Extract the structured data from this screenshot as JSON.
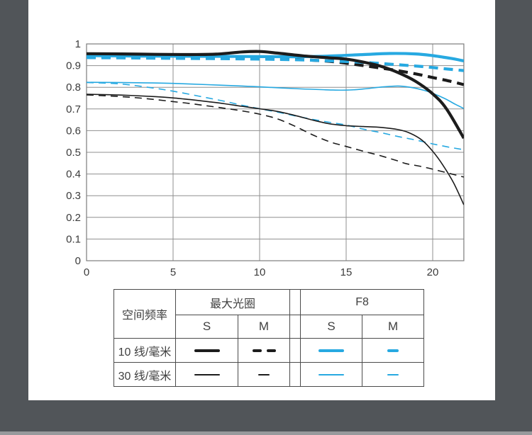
{
  "page": {
    "background": "#515559",
    "panel_bg": "#ffffff",
    "bottom_strip_color": "#97999c"
  },
  "chart_data": {
    "type": "line",
    "title": "",
    "xlabel": "",
    "ylabel": "",
    "xlim": [
      0,
      21.8
    ],
    "ylim": [
      0,
      1
    ],
    "x_ticks": [
      0,
      5,
      10,
      15,
      20
    ],
    "x_tick_labels": [
      "0",
      "5",
      "10",
      "15",
      "20"
    ],
    "y_ticks": [
      0,
      0.1,
      0.2,
      0.3,
      0.4,
      0.5,
      0.6,
      0.7,
      0.8,
      0.9,
      1
    ],
    "y_tick_labels": [
      "0",
      "0.1",
      "0.2",
      "0.3",
      "0.4",
      "0.5",
      "0.6",
      "0.7",
      "0.8",
      "0.9",
      "1"
    ],
    "grid": true,
    "legend_position": "bottom-table",
    "axis_color": "#7d7d7d",
    "grid_color": "#8f8f8f",
    "tick_label_color": "#3b3b3b",
    "colors": {
      "max_aperture_black": "#1c1c1c",
      "f8_blue": "#27a9e1"
    },
    "series": [
      {
        "name": "F8 30线/毫米 M",
        "aperture": "F8",
        "frequency": "30 线/毫米",
        "direction": "M",
        "color": "#27a9e1",
        "width": "thin",
        "dash": true,
        "points": [
          [
            0,
            0.822
          ],
          [
            1.5,
            0.818
          ],
          [
            2.5,
            0.811
          ],
          [
            4,
            0.795
          ],
          [
            5,
            0.782
          ],
          [
            6,
            0.767
          ],
          [
            7,
            0.751
          ],
          [
            8,
            0.735
          ],
          [
            9,
            0.717
          ],
          [
            10,
            0.701
          ],
          [
            11,
            0.686
          ],
          [
            12,
            0.669
          ],
          [
            13,
            0.653
          ],
          [
            14,
            0.639
          ],
          [
            15,
            0.626
          ],
          [
            16,
            0.607
          ],
          [
            17,
            0.591
          ],
          [
            18,
            0.573
          ],
          [
            19,
            0.557
          ],
          [
            20,
            0.539
          ],
          [
            21,
            0.523
          ],
          [
            21.8,
            0.512
          ]
        ]
      },
      {
        "name": "F8 30线/毫米 S",
        "aperture": "F8",
        "frequency": "30 线/毫米",
        "direction": "S",
        "color": "#27a9e1",
        "width": "thin",
        "dash": false,
        "points": [
          [
            0,
            0.823
          ],
          [
            3,
            0.821
          ],
          [
            5,
            0.818
          ],
          [
            7,
            0.812
          ],
          [
            9,
            0.806
          ],
          [
            10,
            0.802
          ],
          [
            12,
            0.794
          ],
          [
            14,
            0.788
          ],
          [
            15,
            0.787
          ],
          [
            16,
            0.792
          ],
          [
            17,
            0.801
          ],
          [
            18,
            0.806
          ],
          [
            18.7,
            0.8
          ],
          [
            19.5,
            0.786
          ],
          [
            20,
            0.772
          ],
          [
            20.7,
            0.748
          ],
          [
            21.3,
            0.722
          ],
          [
            21.8,
            0.702
          ]
        ]
      },
      {
        "name": "最大光圈 30线/毫米 M",
        "aperture": "最大光圈",
        "frequency": "30 线/毫米",
        "direction": "M",
        "color": "#1c1c1c",
        "width": "thin",
        "dash": true,
        "points": [
          [
            0,
            0.765
          ],
          [
            2,
            0.757
          ],
          [
            3,
            0.751
          ],
          [
            4,
            0.743
          ],
          [
            5,
            0.734
          ],
          [
            6,
            0.725
          ],
          [
            7,
            0.714
          ],
          [
            8,
            0.703
          ],
          [
            9,
            0.691
          ],
          [
            10,
            0.676
          ],
          [
            11,
            0.655
          ],
          [
            12,
            0.622
          ],
          [
            13,
            0.583
          ],
          [
            14,
            0.55
          ],
          [
            15,
            0.527
          ],
          [
            16,
            0.505
          ],
          [
            17,
            0.484
          ],
          [
            18,
            0.46
          ],
          [
            18.5,
            0.447
          ],
          [
            19.5,
            0.432
          ],
          [
            20.5,
            0.412
          ],
          [
            21.8,
            0.386
          ]
        ]
      },
      {
        "name": "最大光圈 30线/毫米 S",
        "aperture": "最大光圈",
        "frequency": "30 线/毫米",
        "direction": "S",
        "color": "#1c1c1c",
        "width": "thin",
        "dash": false,
        "points": [
          [
            0,
            0.768
          ],
          [
            2,
            0.764
          ],
          [
            4,
            0.757
          ],
          [
            5,
            0.751
          ],
          [
            6,
            0.743
          ],
          [
            7,
            0.734
          ],
          [
            8,
            0.724
          ],
          [
            9,
            0.712
          ],
          [
            10,
            0.701
          ],
          [
            11,
            0.689
          ],
          [
            12,
            0.671
          ],
          [
            13,
            0.65
          ],
          [
            14,
            0.632
          ],
          [
            15,
            0.623
          ],
          [
            16,
            0.619
          ],
          [
            17,
            0.615
          ],
          [
            18,
            0.605
          ],
          [
            18.7,
            0.588
          ],
          [
            19.4,
            0.555
          ],
          [
            20,
            0.505
          ],
          [
            20.6,
            0.44
          ],
          [
            21.2,
            0.36
          ],
          [
            21.8,
            0.258
          ]
        ]
      },
      {
        "name": "最大光圈 10线/毫米 M",
        "aperture": "最大光圈",
        "frequency": "10 线/毫米",
        "direction": "M",
        "color": "#1c1c1c",
        "width": "thick",
        "dash": true,
        "points": [
          [
            0,
            0.941
          ],
          [
            3,
            0.939
          ],
          [
            6,
            0.937
          ],
          [
            9,
            0.935
          ],
          [
            11,
            0.931
          ],
          [
            13,
            0.925
          ],
          [
            14.5,
            0.916
          ],
          [
            16,
            0.9
          ],
          [
            17.5,
            0.883
          ],
          [
            19,
            0.862
          ],
          [
            20,
            0.845
          ],
          [
            21,
            0.828
          ],
          [
            21.8,
            0.812
          ]
        ]
      },
      {
        "name": "F8 10线/毫米 M",
        "aperture": "F8",
        "frequency": "10 线/毫米",
        "direction": "M",
        "color": "#27a9e1",
        "width": "thick",
        "dash": true,
        "points": [
          [
            0,
            0.937
          ],
          [
            3,
            0.935
          ],
          [
            6,
            0.933
          ],
          [
            9,
            0.931
          ],
          [
            12,
            0.927
          ],
          [
            14,
            0.922
          ],
          [
            16,
            0.915
          ],
          [
            18,
            0.904
          ],
          [
            19.5,
            0.895
          ],
          [
            20.5,
            0.887
          ],
          [
            21.8,
            0.877
          ]
        ]
      },
      {
        "name": "F8 10线/毫米 S",
        "aperture": "F8",
        "frequency": "10 线/毫米",
        "direction": "S",
        "color": "#27a9e1",
        "width": "thick",
        "dash": false,
        "points": [
          [
            0,
            0.946
          ],
          [
            3,
            0.944
          ],
          [
            6,
            0.943
          ],
          [
            9,
            0.942
          ],
          [
            12,
            0.941
          ],
          [
            14,
            0.944
          ],
          [
            16,
            0.951
          ],
          [
            17.5,
            0.956
          ],
          [
            19,
            0.954
          ],
          [
            20,
            0.946
          ],
          [
            21,
            0.934
          ],
          [
            21.8,
            0.922
          ]
        ]
      },
      {
        "name": "最大光圈 10线/毫米 S",
        "aperture": "最大光圈",
        "frequency": "10 线/毫米",
        "direction": "S",
        "color": "#1c1c1c",
        "width": "thick",
        "dash": false,
        "points": [
          [
            0,
            0.955
          ],
          [
            2,
            0.954
          ],
          [
            4,
            0.952
          ],
          [
            6,
            0.951
          ],
          [
            7.5,
            0.953
          ],
          [
            9,
            0.963
          ],
          [
            10,
            0.965
          ],
          [
            11,
            0.958
          ],
          [
            12.5,
            0.945
          ],
          [
            14,
            0.936
          ],
          [
            15,
            0.93
          ],
          [
            16,
            0.916
          ],
          [
            17,
            0.897
          ],
          [
            18,
            0.868
          ],
          [
            19,
            0.828
          ],
          [
            20,
            0.77
          ],
          [
            20.8,
            0.7
          ],
          [
            21.8,
            0.565
          ]
        ]
      }
    ]
  },
  "legend_table": {
    "corner_label": "空间频率",
    "group_headers": [
      {
        "label": "最大光圈"
      },
      {
        "label": "F8"
      }
    ],
    "sub_headers": [
      "S",
      "M",
      "S",
      "M"
    ],
    "rows": [
      {
        "label": "10 线/毫米",
        "samples": [
          {
            "color": "#1c1c1c",
            "weight": "thick",
            "pattern": "solid"
          },
          {
            "color": "#1c1c1c",
            "weight": "thick",
            "pattern": "dashes"
          },
          {
            "color": "#27a9e1",
            "weight": "thick",
            "pattern": "solid"
          },
          {
            "color": "#27a9e1",
            "weight": "thick",
            "pattern": "dash"
          }
        ]
      },
      {
        "label": "30 线/毫米",
        "samples": [
          {
            "color": "#1c1c1c",
            "weight": "thin",
            "pattern": "solid"
          },
          {
            "color": "#1c1c1c",
            "weight": "thin",
            "pattern": "dash"
          },
          {
            "color": "#27a9e1",
            "weight": "thin",
            "pattern": "solid"
          },
          {
            "color": "#27a9e1",
            "weight": "thin",
            "pattern": "dash"
          }
        ]
      }
    ]
  }
}
